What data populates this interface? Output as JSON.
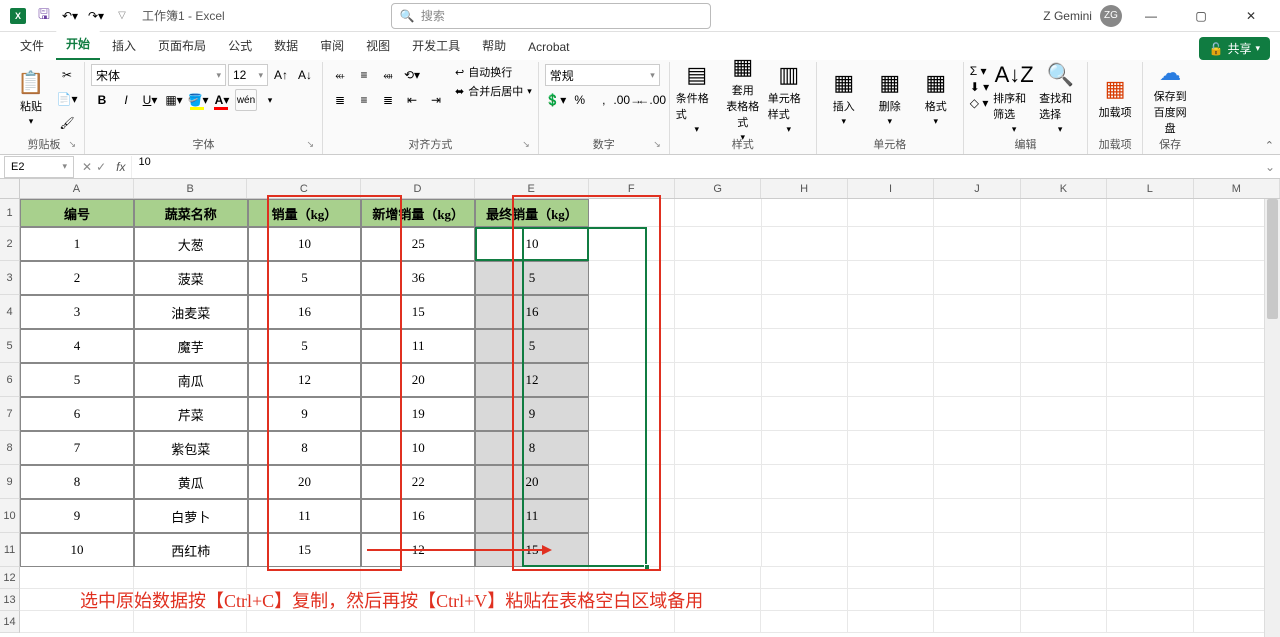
{
  "titlebar": {
    "doc_title": "工作簿1 - Excel",
    "search_placeholder": "搜索",
    "user_name": "Z Gemini",
    "user_initials": "ZG"
  },
  "tabs": {
    "items": [
      "文件",
      "开始",
      "插入",
      "页面布局",
      "公式",
      "数据",
      "审阅",
      "视图",
      "开发工具",
      "帮助",
      "Acrobat"
    ],
    "active_index": 1,
    "share": "共享"
  },
  "ribbon": {
    "clipboard": {
      "paste": "粘贴",
      "label": "剪贴板"
    },
    "font": {
      "name": "宋体",
      "size": "12",
      "label": "字体"
    },
    "align": {
      "wrap": "自动换行",
      "merge": "合并后居中",
      "label": "对齐方式"
    },
    "number": {
      "format": "常规",
      "label": "数字"
    },
    "styles": {
      "cond": "条件格式",
      "table": "套用\n表格格式",
      "cell": "单元格样式",
      "label": "样式"
    },
    "cells": {
      "insert": "插入",
      "delete": "删除",
      "format": "格式",
      "label": "单元格"
    },
    "editing": {
      "sort": "排序和筛选",
      "find": "查找和选择",
      "label": "编辑"
    },
    "addins": {
      "load": "加载项",
      "label": "加载项"
    },
    "save": {
      "baidu": "保存到\n百度网盘",
      "label": "保存"
    }
  },
  "fbar": {
    "name": "E2",
    "formula": "10"
  },
  "grid": {
    "col_widths": {
      "A": 125,
      "B": 125,
      "C": 125,
      "D": 125,
      "E": 125,
      "rest": 95
    },
    "col_letters": [
      "A",
      "B",
      "C",
      "D",
      "E",
      "F",
      "G",
      "H",
      "I",
      "J",
      "K",
      "L",
      "M"
    ],
    "row_heights": {
      "header": 28,
      "data": 34,
      "empty": 22
    },
    "headers": [
      "编号",
      "蔬菜名称",
      "销量（kg）",
      "新增销量（kg）",
      "最终销量（kg）"
    ],
    "rows": [
      {
        "id": "1",
        "name": "大葱",
        "sale": "10",
        "add": "25",
        "final": "10"
      },
      {
        "id": "2",
        "name": "菠菜",
        "sale": "5",
        "add": "36",
        "final": "5"
      },
      {
        "id": "3",
        "name": "油麦菜",
        "sale": "16",
        "add": "15",
        "final": "16"
      },
      {
        "id": "4",
        "name": "魔芋",
        "sale": "5",
        "add": "11",
        "final": "5"
      },
      {
        "id": "5",
        "name": "南瓜",
        "sale": "12",
        "add": "20",
        "final": "12"
      },
      {
        "id": "6",
        "name": "芹菜",
        "sale": "9",
        "add": "19",
        "final": "9"
      },
      {
        "id": "7",
        "name": "紫包菜",
        "sale": "8",
        "add": "10",
        "final": "8"
      },
      {
        "id": "8",
        "name": "黄瓜",
        "sale": "20",
        "add": "22",
        "final": "20"
      },
      {
        "id": "9",
        "name": "白萝卜",
        "sale": "11",
        "add": "16",
        "final": "11"
      },
      {
        "id": "10",
        "name": "西红柿",
        "sale": "15",
        "add": "12",
        "final": "15"
      }
    ],
    "header_bg": "#a8d08d",
    "shaded_bg": "#d9d9d9",
    "selection": {
      "active": "E2",
      "range": "E2:E11"
    }
  },
  "annotation": {
    "text": "选中原始数据按【Ctrl+C】复制，然后再按【Ctrl+V】粘贴在表格空白区域备用",
    "color": "#e03020"
  }
}
